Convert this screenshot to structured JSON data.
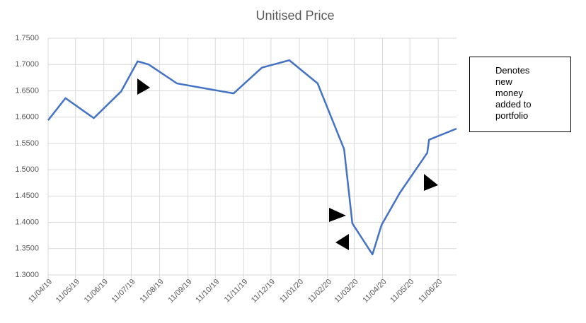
{
  "chart_data": {
    "type": "line",
    "title": "Unitised Price",
    "x": [
      "2019-04-11",
      "2019-04-30",
      "2019-05-31",
      "2019-06-30",
      "2019-07-18",
      "2019-07-30",
      "2019-08-30",
      "2019-10-31",
      "2019-12-01",
      "2019-12-31",
      "2020-01-31",
      "2020-02-29",
      "2020-03-09",
      "2020-03-31",
      "2020-04-10",
      "2020-04-30",
      "2020-05-30",
      "2020-06-01",
      "2020-07-01"
    ],
    "series": [
      {
        "name": "Unitised Price",
        "color": "#4472c4",
        "values": [
          1.594,
          1.636,
          1.598,
          1.649,
          1.706,
          1.7,
          1.664,
          1.645,
          1.694,
          1.708,
          1.664,
          1.539,
          1.398,
          1.339,
          1.395,
          1.456,
          1.532,
          1.557,
          1.578
        ]
      }
    ],
    "xlim": [
      "2019-04-11",
      "2020-07-01"
    ],
    "xticks": [
      {
        "value": "2019-04-11",
        "label": "11/04/19"
      },
      {
        "value": "2019-05-11",
        "label": "11/05/19"
      },
      {
        "value": "2019-06-11",
        "label": "11/06/19"
      },
      {
        "value": "2019-07-11",
        "label": "11/07/19"
      },
      {
        "value": "2019-08-11",
        "label": "11/08/19"
      },
      {
        "value": "2019-09-11",
        "label": "11/09/19"
      },
      {
        "value": "2019-10-11",
        "label": "11/10/19"
      },
      {
        "value": "2019-11-11",
        "label": "11/11/19"
      },
      {
        "value": "2019-12-11",
        "label": "11/12/19"
      },
      {
        "value": "2020-01-11",
        "label": "11/01/20"
      },
      {
        "value": "2020-02-11",
        "label": "11/02/20"
      },
      {
        "value": "2020-03-11",
        "label": "11/03/20"
      },
      {
        "value": "2020-04-11",
        "label": "11/04/20"
      },
      {
        "value": "2020-05-11",
        "label": "11/05/20"
      },
      {
        "value": "2020-06-11",
        "label": "11/06/20"
      }
    ],
    "ylim": [
      1.3,
      1.75
    ],
    "yticks": [
      {
        "value": 1.3,
        "label": "1.3000"
      },
      {
        "value": 1.35,
        "label": "1.3500"
      },
      {
        "value": 1.4,
        "label": "1.4000"
      },
      {
        "value": 1.45,
        "label": "1.4500"
      },
      {
        "value": 1.5,
        "label": "1.5000"
      },
      {
        "value": 1.55,
        "label": "1.5500"
      },
      {
        "value": 1.6,
        "label": "1.6000"
      },
      {
        "value": 1.65,
        "label": "1.6500"
      },
      {
        "value": 1.7,
        "label": "1.7000"
      },
      {
        "value": 1.75,
        "label": "1.7500"
      }
    ],
    "grid": true,
    "annotation": "Denotes new money added to portfolio"
  }
}
